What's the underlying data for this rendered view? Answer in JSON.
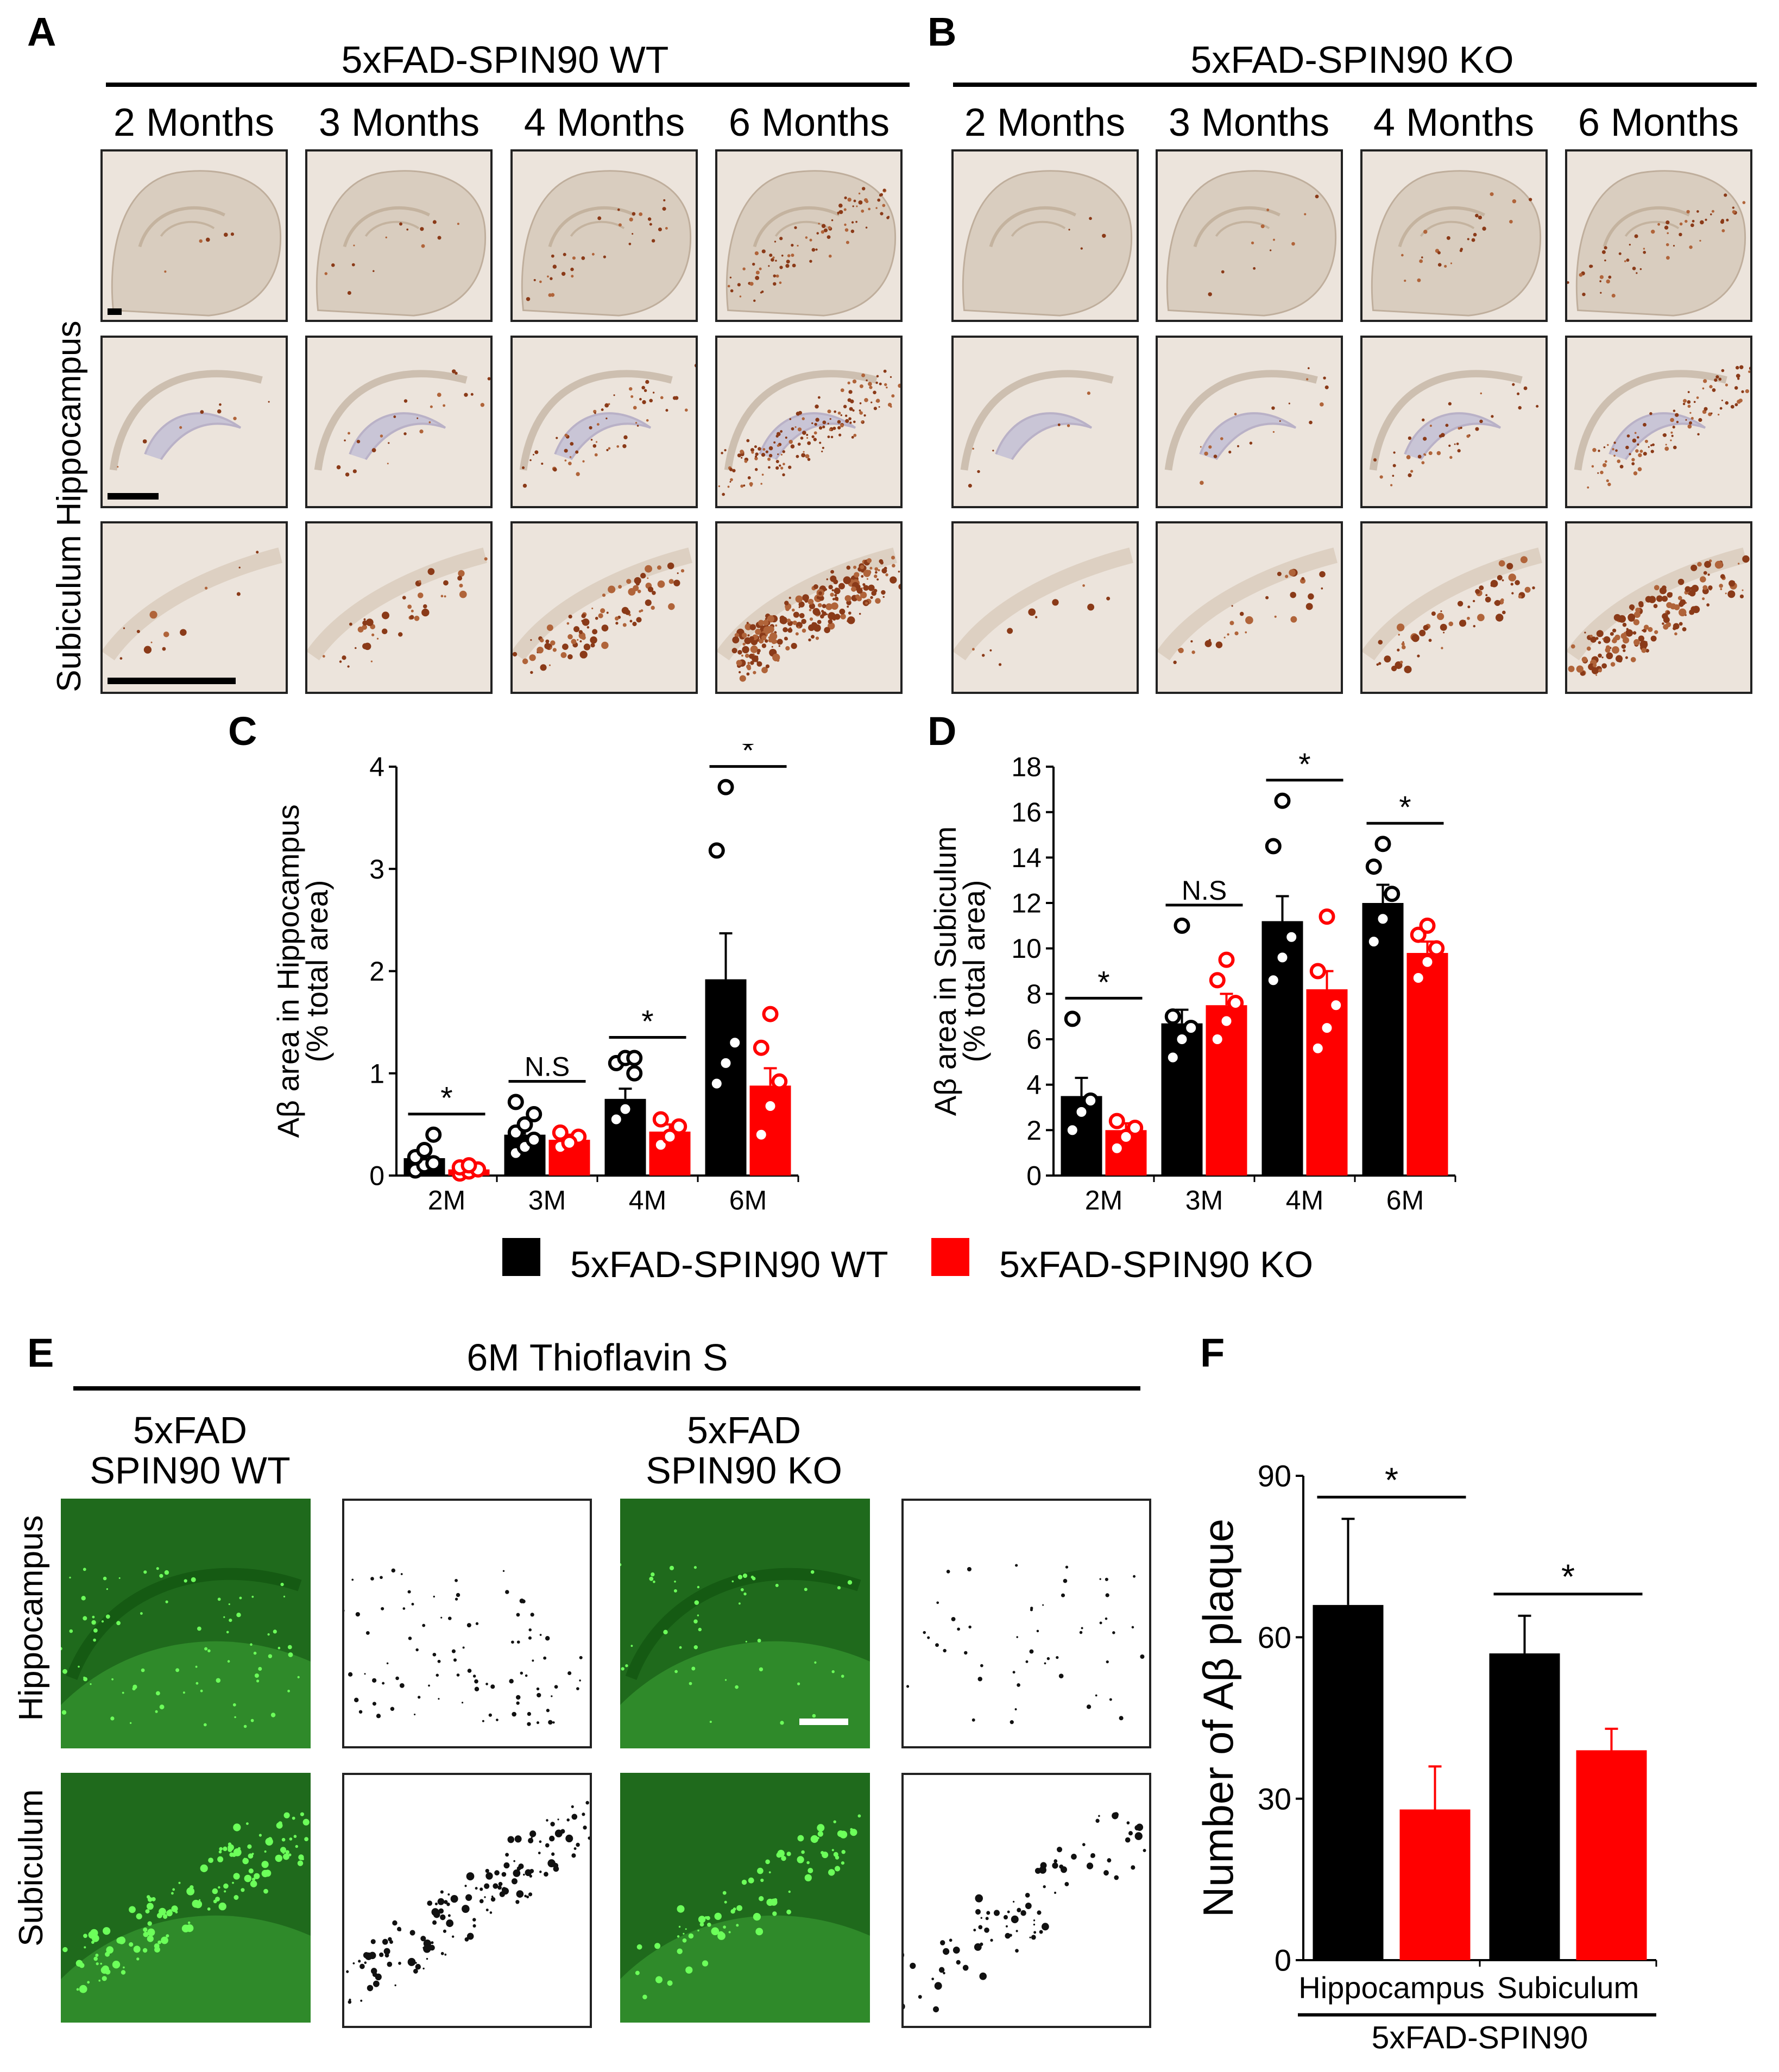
{
  "panels": {
    "A": "A",
    "B": "B",
    "C": "C",
    "D": "D",
    "E": "E",
    "F": "F"
  },
  "top": {
    "wt_title": "5xFAD-SPIN90 WT",
    "ko_title": "5xFAD-SPIN90 KO",
    "months": [
      "2 Months",
      "3 Months",
      "4 Months",
      "6 Months"
    ],
    "rows": [
      "Hippocampus",
      "Subiculum"
    ]
  },
  "legend": {
    "wt": "5xFAD-SPIN90  WT",
    "ko": "5xFAD-SPIN90  KO",
    "wt_color": "#000000",
    "ko_color": "#ff0000"
  },
  "bottom": {
    "title": "6M Thioflavin S",
    "wt_label_1": "5xFAD",
    "wt_label_2": "SPIN90  WT",
    "ko_label_1": "5xFAD",
    "ko_label_2": "SPIN90  KO",
    "rows": [
      "Hippocampus",
      "Subiculum"
    ]
  },
  "chart_data": [
    {
      "panel": "C",
      "type": "bar",
      "categories": [
        "2M",
        "3M",
        "4M",
        "6M"
      ],
      "ylabel_1": "Aβ area in Hippocampus",
      "ylabel_2": "(% total area)",
      "ylim": [
        0,
        4
      ],
      "yticks": [
        0,
        1,
        2,
        3,
        4
      ],
      "series": [
        {
          "key": "wt",
          "values": [
            0.17,
            0.4,
            0.75,
            1.92
          ],
          "errors": [
            0.05,
            0.06,
            0.1,
            0.45
          ],
          "points": [
            [
              0.05,
              0.1,
              0.12,
              0.18,
              0.25,
              0.4
            ],
            [
              0.22,
              0.28,
              0.35,
              0.42,
              0.5,
              0.6,
              0.72
            ],
            [
              0.55,
              0.65,
              1.0,
              1.1,
              1.15,
              1.15
            ],
            [
              0.9,
              1.1,
              1.3,
              3.18,
              3.8
            ]
          ]
        },
        {
          "key": "ko",
          "values": [
            0.06,
            0.35,
            0.43,
            0.88
          ],
          "errors": [
            0.02,
            0.05,
            0.07,
            0.17
          ],
          "points": [
            [
              0.02,
              0.04,
              0.06,
              0.08,
              0.1
            ],
            [
              0.28,
              0.33,
              0.38,
              0.42,
              0.32
            ],
            [
              0.3,
              0.38,
              0.48,
              0.55
            ],
            [
              0.4,
              0.68,
              0.92,
              1.25,
              1.58
            ]
          ]
        }
      ],
      "annotations": [
        "*",
        "N.S",
        "*",
        "*"
      ]
    },
    {
      "panel": "D",
      "type": "bar",
      "categories": [
        "2M",
        "3M",
        "4M",
        "6M"
      ],
      "ylabel_1": "Aβ area in Subiculum",
      "ylabel_2": "(% total area)",
      "ylim": [
        0,
        18
      ],
      "yticks": [
        0,
        2,
        4,
        6,
        8,
        10,
        12,
        14,
        16,
        18
      ],
      "series": [
        {
          "key": "wt",
          "values": [
            3.5,
            6.7,
            11.2,
            12.0
          ],
          "errors": [
            0.8,
            0.6,
            1.1,
            0.8
          ],
          "points": [
            [
              2.0,
              2.8,
              3.3,
              6.9
            ],
            [
              5.2,
              6.0,
              6.5,
              7.0,
              11.0
            ],
            [
              8.6,
              9.6,
              10.5,
              14.5,
              16.5
            ],
            [
              10.3,
              11.3,
              12.4,
              13.6,
              14.6
            ]
          ]
        },
        {
          "key": "ko",
          "values": [
            2.0,
            7.5,
            8.2,
            9.8
          ],
          "errors": [
            0.3,
            0.5,
            0.8,
            0.5
          ],
          "points": [
            [
              1.2,
              1.7,
              2.1,
              2.4
            ],
            [
              6.0,
              6.8,
              7.6,
              8.6,
              9.5
            ],
            [
              5.6,
              6.5,
              7.5,
              9.0,
              11.4
            ],
            [
              8.7,
              9.4,
              10.0,
              10.6,
              11.0
            ]
          ]
        }
      ],
      "annotations": [
        "*",
        "N.S",
        "*",
        "*"
      ]
    },
    {
      "panel": "F",
      "type": "bar",
      "categories": [
        "Hippocampus",
        "Subiculum"
      ],
      "ylabel": "Number of Aβ plaque",
      "xlabel": "5xFAD-SPIN90",
      "ylim": [
        0,
        90
      ],
      "yticks": [
        0,
        30,
        60,
        90
      ],
      "series": [
        {
          "key": "wt",
          "values": [
            66,
            57
          ],
          "errors": [
            16,
            7
          ]
        },
        {
          "key": "ko",
          "values": [
            28,
            39
          ],
          "errors": [
            8,
            4
          ]
        }
      ],
      "annotations": [
        "*",
        "*"
      ]
    }
  ]
}
